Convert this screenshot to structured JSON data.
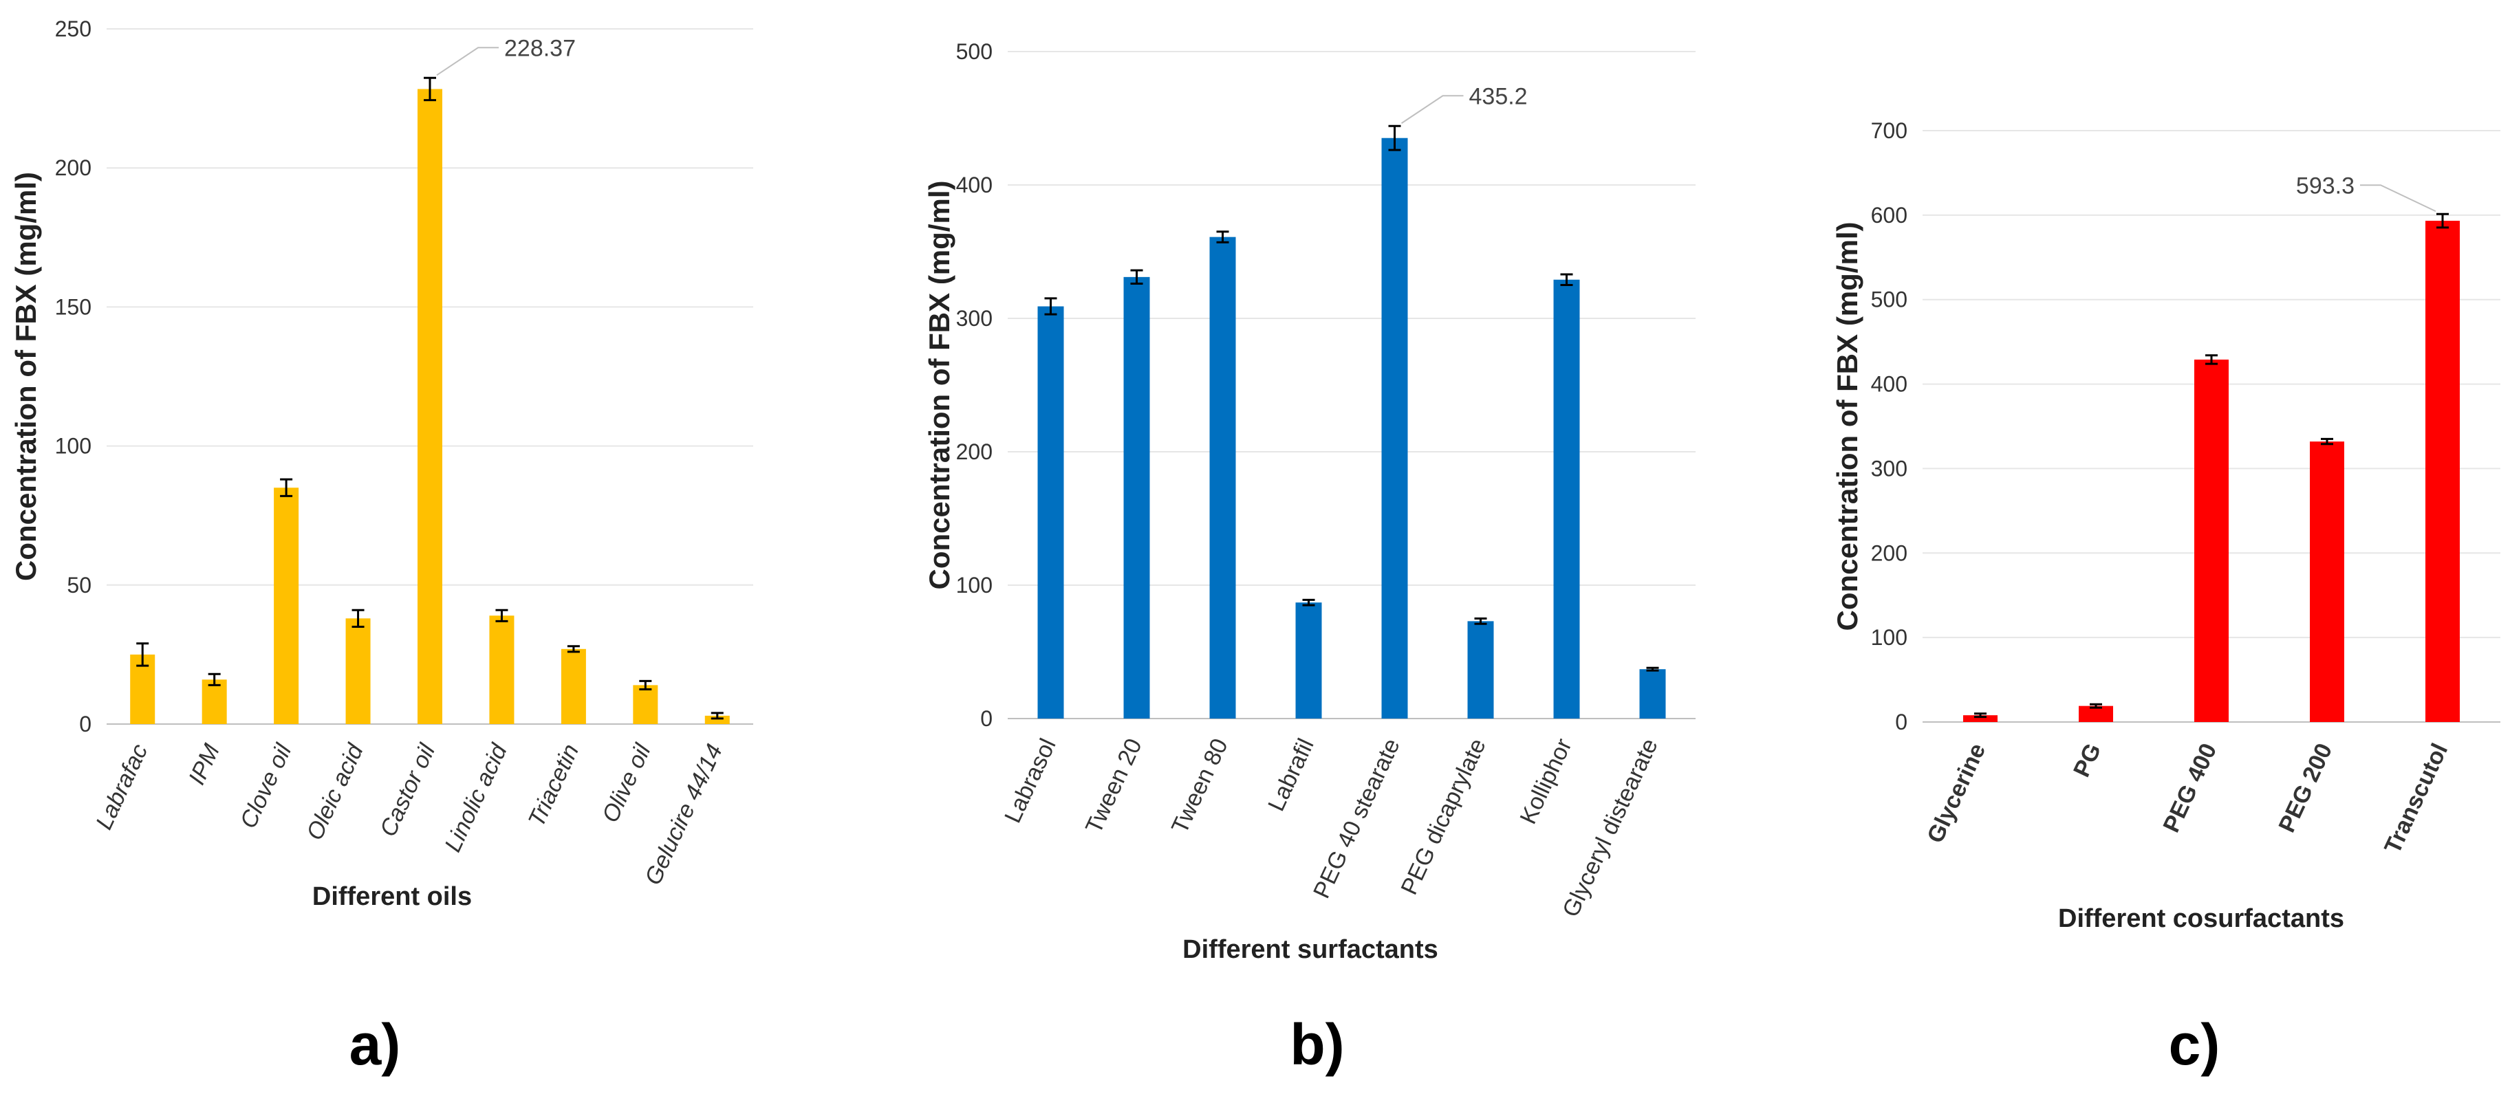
{
  "chart_data": [
    {
      "type": "bar",
      "panel": "a)",
      "categories": [
        "Labrafac",
        "IPM",
        "Clove oil",
        "Oleic acid",
        "Castor oil",
        "Linolic acid",
        "Triacetin",
        "Olive oil",
        "Gelucire 44/14"
      ],
      "values": [
        25,
        16,
        85,
        38,
        228.37,
        39,
        27,
        14,
        3
      ],
      "errors": [
        4,
        2,
        3,
        3,
        4,
        2,
        1,
        1.5,
        1
      ],
      "color": "#FFC000",
      "ylim": [
        0,
        250
      ],
      "yticks": [
        0,
        50,
        100,
        150,
        200,
        250
      ],
      "ylabel": "Concentration of FBX (mg/ml)",
      "xlabel": "Different oils",
      "annotation": {
        "label": "228.37",
        "index": 4
      },
      "gridlines": true
    },
    {
      "type": "bar",
      "panel": "b)",
      "categories": [
        "Labrasol",
        "Tween 20",
        "Tween 80",
        "Labrafil",
        "PEG 40 stearate",
        "PEG dicaprylate",
        "Kolliphor",
        "Glyceryl distearate"
      ],
      "values": [
        309,
        331,
        361,
        87,
        435.2,
        73,
        329,
        37
      ],
      "errors": [
        6,
        5,
        4,
        2,
        9,
        2,
        4,
        1
      ],
      "color": "#0070C0",
      "ylim": [
        0,
        500
      ],
      "yticks": [
        0,
        100,
        200,
        300,
        400,
        500
      ],
      "ylabel": "Concentration of FBX (mg/ml)",
      "xlabel": "Different surfactants",
      "annotation": {
        "label": "435.2",
        "index": 4
      },
      "gridlines": true
    },
    {
      "type": "bar",
      "panel": "c)",
      "categories": [
        "Glycerine",
        "PG",
        "PEG 400",
        "PEG 200",
        "Transcutol"
      ],
      "values": [
        8,
        19,
        429,
        332,
        593.3
      ],
      "errors": [
        2,
        2,
        5,
        3,
        8
      ],
      "color": "#FF0000",
      "ylim": [
        0,
        700
      ],
      "yticks": [
        0,
        100,
        200,
        300,
        400,
        500,
        600,
        700
      ],
      "ylabel": "Concentration of FBX (mg/ml)",
      "xlabel": "Different cosurfactants",
      "annotation": {
        "label": "593.3",
        "index": 4
      },
      "gridlines": true
    }
  ]
}
